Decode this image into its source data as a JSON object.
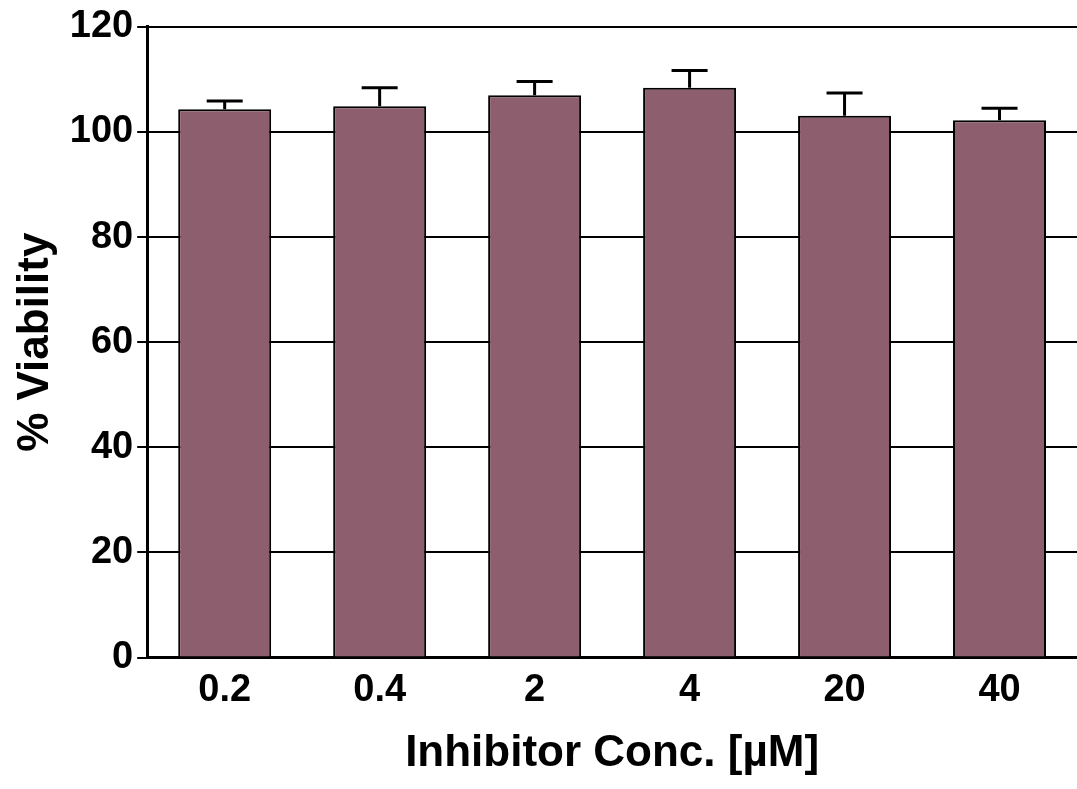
{
  "chart_data": {
    "type": "bar",
    "xlabel": "Inhibitor Conc. [µM]",
    "ylabel": "% Viability",
    "categories": [
      "0.2",
      "0.4",
      "2",
      "4",
      "20",
      "40"
    ],
    "values": [
      104.3,
      104.9,
      107,
      108.4,
      103.1,
      102.2
    ],
    "errors": [
      1.6,
      3.5,
      2.6,
      3.3,
      4.3,
      2.3
    ],
    "color": "#8c5e6e",
    "ylim": [
      0,
      120
    ],
    "yticks": [
      0,
      20,
      40,
      60,
      80,
      100,
      120
    ],
    "grid": "y",
    "legend": false
  }
}
